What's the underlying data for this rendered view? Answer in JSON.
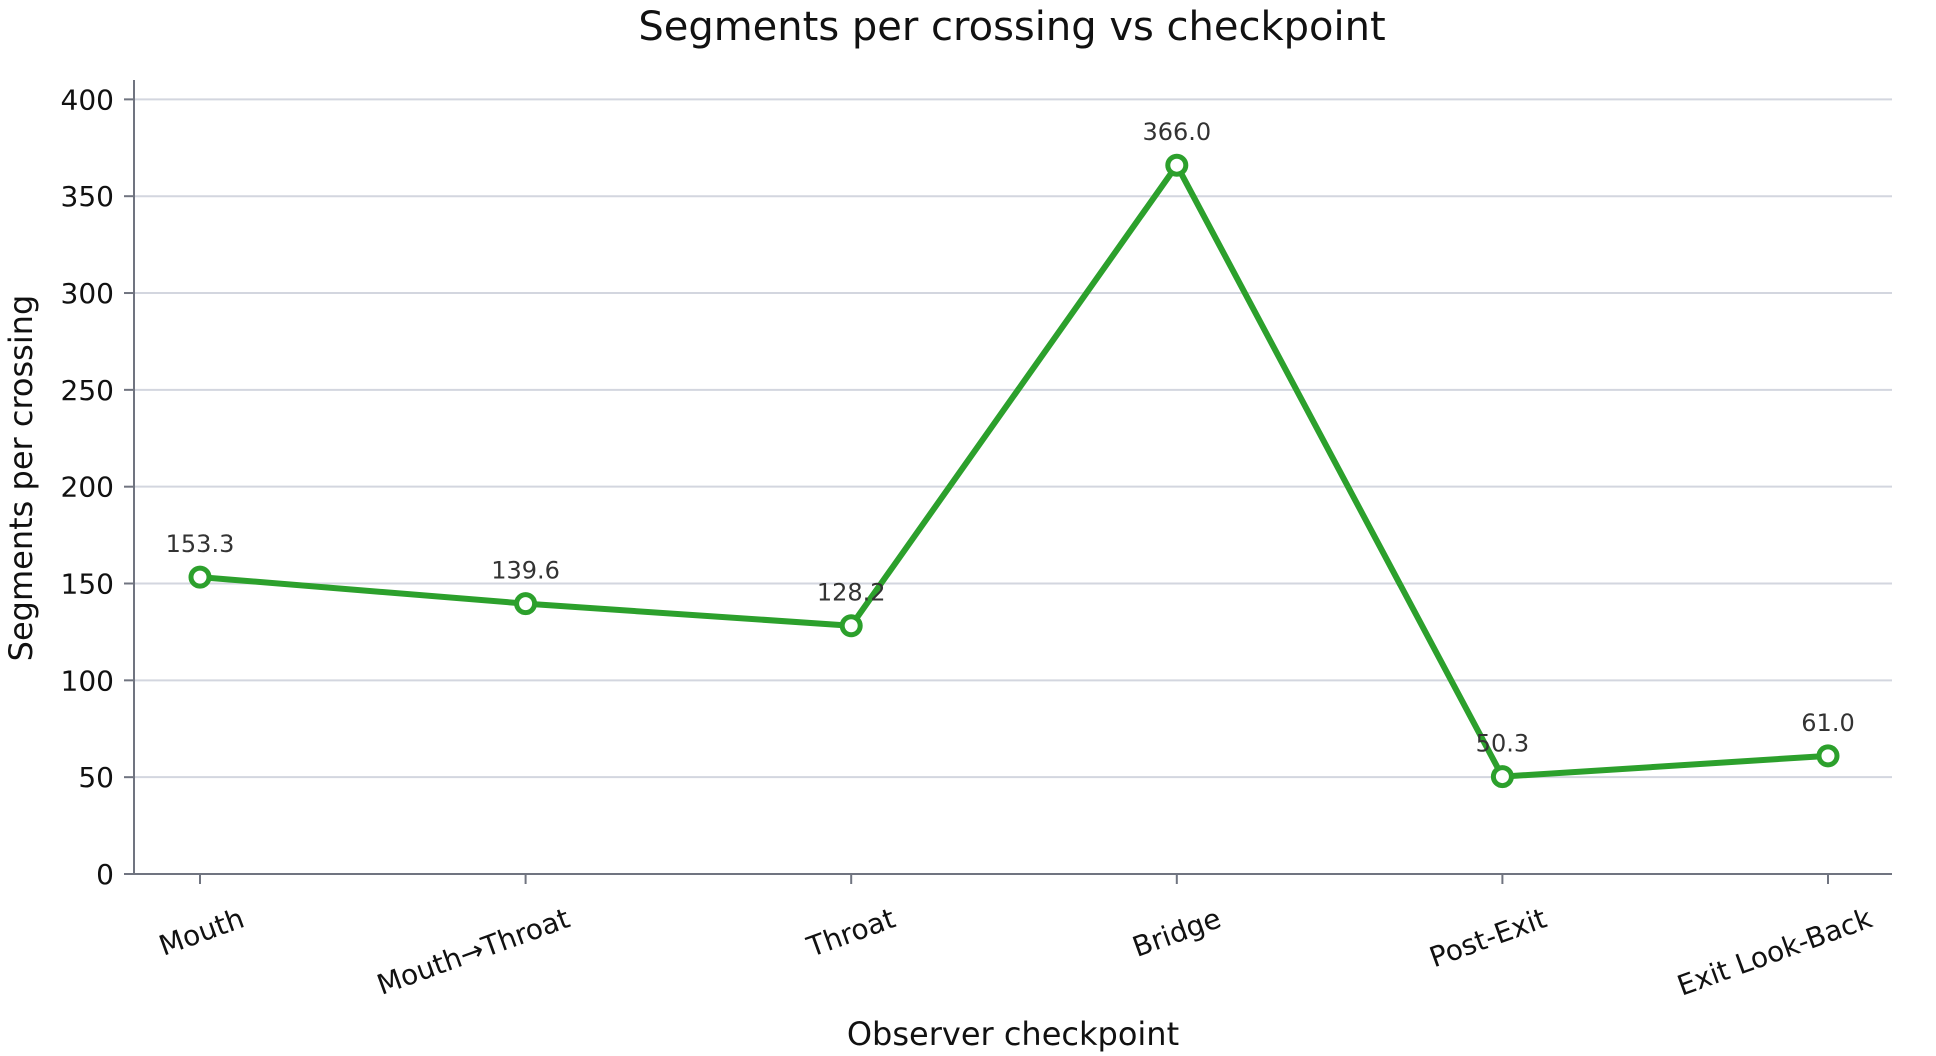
{
  "chart_data": {
    "type": "line",
    "title": "Segments per crossing vs checkpoint",
    "xlabel": "Observer checkpoint",
    "ylabel": "Segments per crossing",
    "categories": [
      "Mouth",
      "Mouth→Throat",
      "Throat",
      "Bridge",
      "Post-Exit",
      "Exit Look-Back"
    ],
    "series": [
      {
        "values": [
          153.3,
          139.6,
          128.2,
          366.0,
          50.3,
          61.0
        ]
      }
    ],
    "data_labels": [
      "153.3",
      "139.6",
      "128.2",
      "366.0",
      "50.3",
      "61.0"
    ],
    "ylim": [
      0,
      410
    ],
    "yticks": [
      0,
      50,
      100,
      150,
      200,
      250,
      300,
      350,
      400
    ],
    "grid": "horizontal",
    "legend": "none",
    "colors": {
      "line": "#2ca02c",
      "grid": "#d3d6df",
      "axis": "#707480"
    }
  }
}
